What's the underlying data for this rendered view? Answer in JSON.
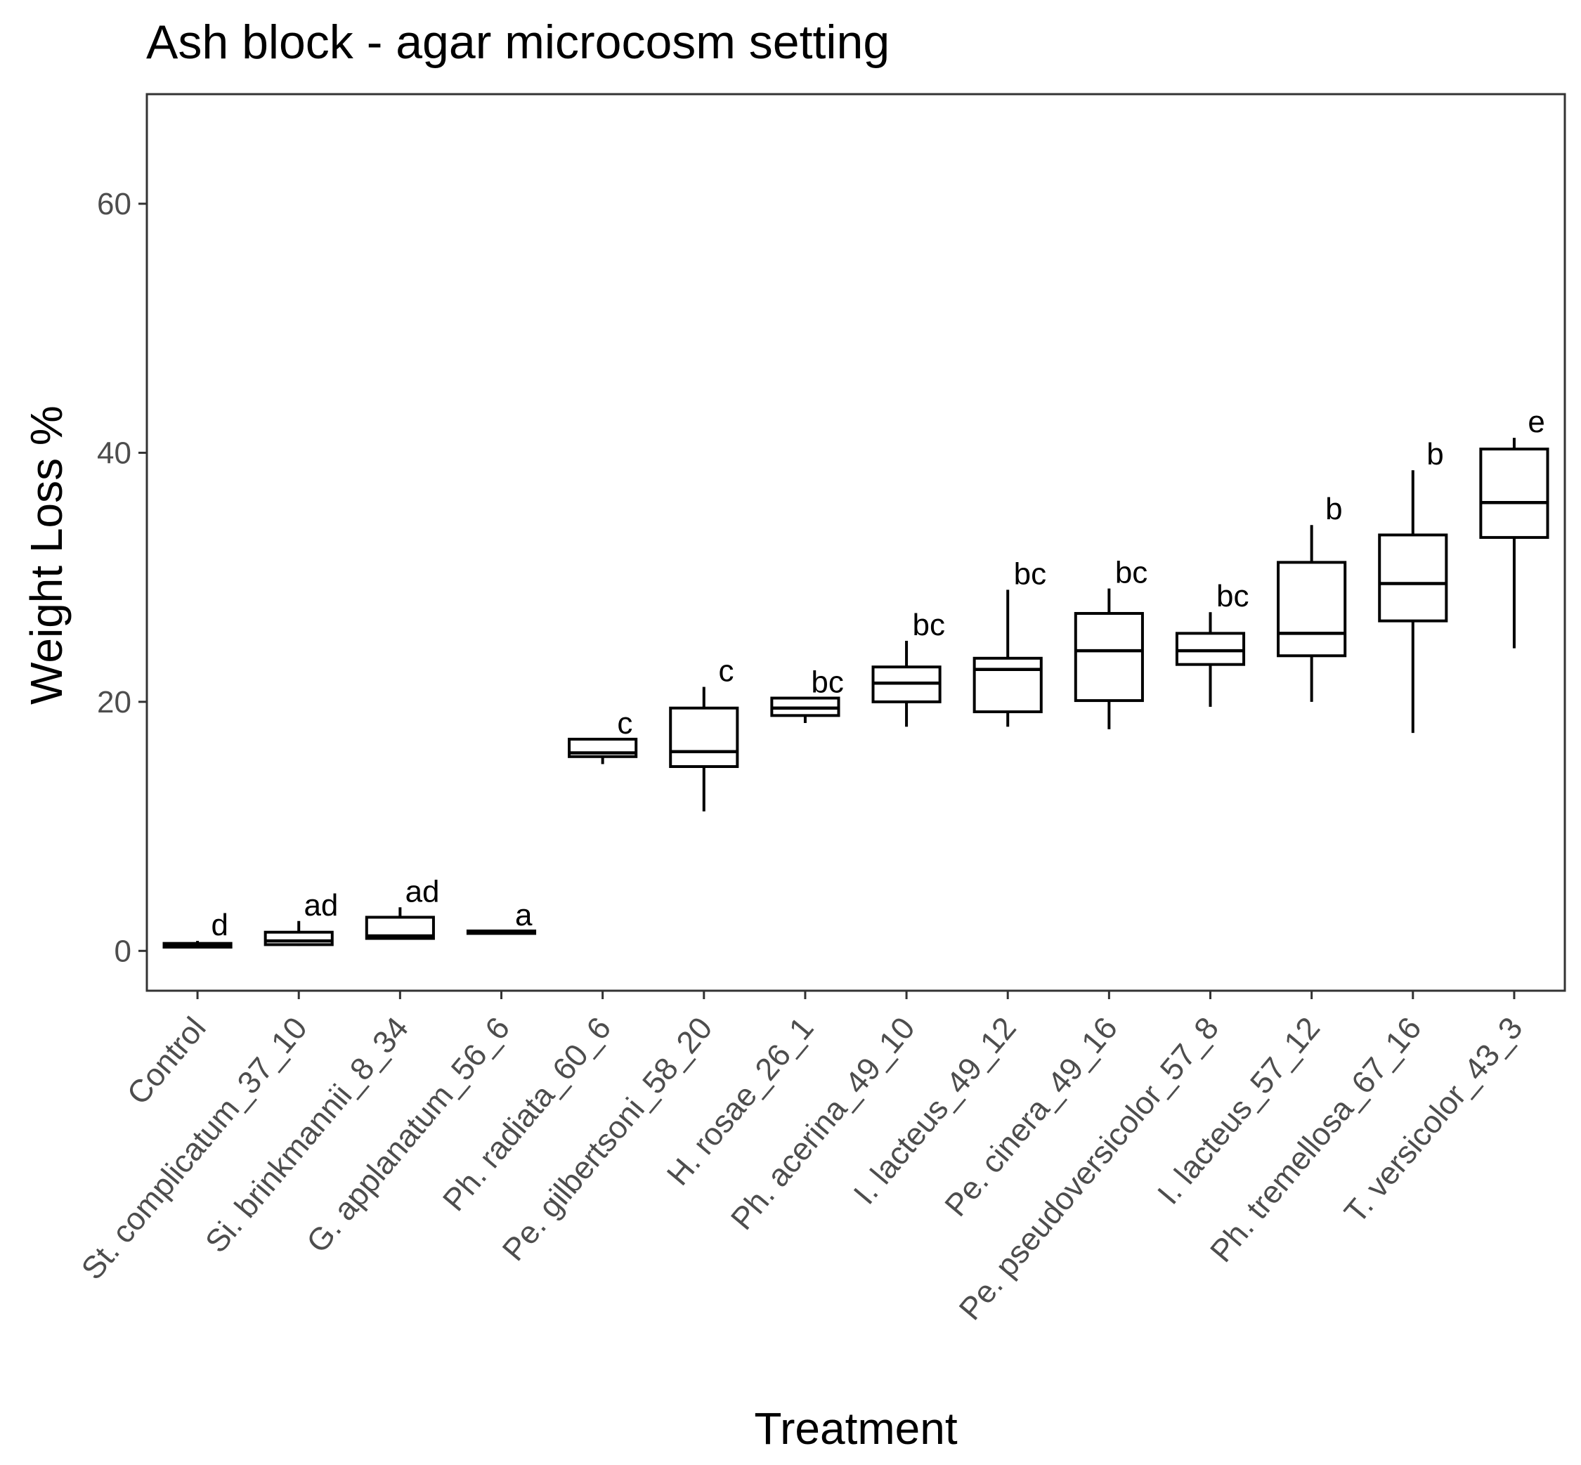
{
  "chart_data": {
    "type": "box",
    "title": "Ash block - agar microcosm setting",
    "xlabel": "Treatment",
    "ylabel": "Weight Loss %",
    "ylim": [
      -3.2,
      68.8
    ],
    "yticks": [
      0,
      20,
      40,
      60
    ],
    "grid": false,
    "categories": [
      "Control",
      "St. complicatum_37_10",
      "Si. brinkmannii_8_34",
      "G. applanatum_56_6",
      "Ph. radiata_60_6",
      "Pe. gilbertsoni_58_20",
      "H. rosae_26_1",
      "Ph. acerina_49_10",
      "I. lacteus_49_12",
      "Pe. cinera_49_16",
      "Pe. pseudoversicolor_57_8",
      "I. lacteus_57_12",
      "Ph. tremellosa_67_16",
      "T. versicolor_43_3"
    ],
    "boxes": [
      {
        "min": 0.2,
        "q1": 0.3,
        "median": 0.5,
        "q3": 0.6,
        "max": 0.8,
        "letter": "d"
      },
      {
        "min": 0.4,
        "q1": 0.5,
        "median": 0.8,
        "q3": 1.5,
        "max": 2.4,
        "letter": "ad"
      },
      {
        "min": 0.9,
        "q1": 1.0,
        "median": 1.2,
        "q3": 2.7,
        "max": 3.5,
        "letter": "ad"
      },
      {
        "min": 1.3,
        "q1": 1.4,
        "median": 1.5,
        "q3": 1.6,
        "max": 1.6,
        "letter": "a"
      },
      {
        "min": 15.0,
        "q1": 15.6,
        "median": 15.9,
        "q3": 17.0,
        "max": 17.0,
        "letter": "c"
      },
      {
        "min": 11.2,
        "q1": 14.8,
        "median": 16.0,
        "q3": 19.5,
        "max": 21.2,
        "letter": "c"
      },
      {
        "min": 18.3,
        "q1": 18.9,
        "median": 19.5,
        "q3": 20.3,
        "max": 20.3,
        "letter": "bc"
      },
      {
        "min": 18.0,
        "q1": 20.0,
        "median": 21.5,
        "q3": 22.8,
        "max": 24.9,
        "letter": "bc"
      },
      {
        "min": 18.0,
        "q1": 19.2,
        "median": 22.6,
        "q3": 23.5,
        "max": 29.0,
        "letter": "bc"
      },
      {
        "min": 17.8,
        "q1": 20.1,
        "median": 24.1,
        "q3": 27.1,
        "max": 29.1,
        "letter": "bc"
      },
      {
        "min": 19.6,
        "q1": 23.0,
        "median": 24.1,
        "q3": 25.5,
        "max": 27.2,
        "letter": "bc"
      },
      {
        "min": 20.0,
        "q1": 23.7,
        "median": 25.5,
        "q3": 31.2,
        "max": 34.2,
        "letter": "b"
      },
      {
        "min": 17.5,
        "q1": 26.5,
        "median": 29.5,
        "q3": 33.4,
        "max": 38.6,
        "letter": "b"
      },
      {
        "min": 24.3,
        "q1": 33.2,
        "median": 36.0,
        "q3": 40.3,
        "max": 41.2,
        "letter": "e"
      }
    ]
  }
}
